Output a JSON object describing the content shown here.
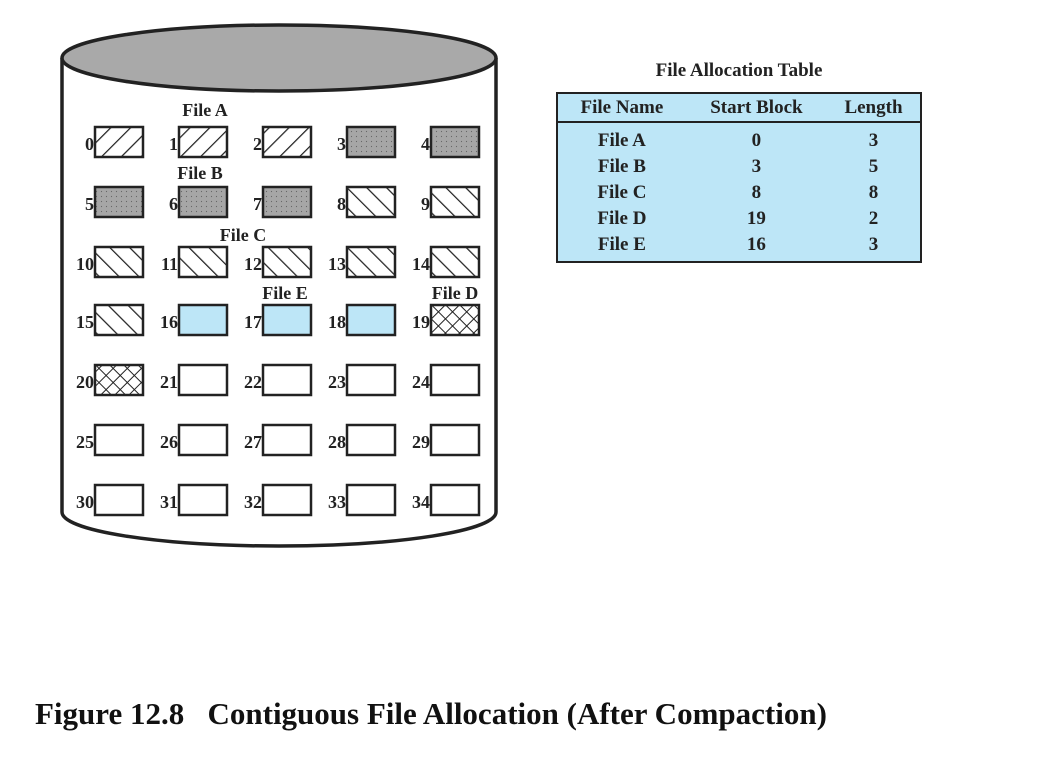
{
  "disk": {
    "block_count": 35,
    "files": [
      {
        "name": "File A",
        "pattern": "back-diagonal-hatch"
      },
      {
        "name": "File B",
        "pattern": "gray-dotted"
      },
      {
        "name": "File C",
        "pattern": "forward-diagonal-hatch"
      },
      {
        "name": "File D",
        "pattern": "cross-hatch"
      },
      {
        "name": "File E",
        "pattern": "light-blue"
      }
    ],
    "colors": {
      "cylinder_top": "#a9a9a9",
      "file_b": "#a6a6a6",
      "file_e": "#bde6f7",
      "outline": "#222222"
    }
  },
  "fat": {
    "title": "File Allocation Table",
    "columns": [
      "File Name",
      "Start Block",
      "Length"
    ],
    "rows": [
      [
        "File A",
        "0",
        "3"
      ],
      [
        "File B",
        "3",
        "5"
      ],
      [
        "File C",
        "8",
        "8"
      ],
      [
        "File D",
        "19",
        "2"
      ],
      [
        "File E",
        "16",
        "3"
      ]
    ],
    "background": "#bde6f7"
  },
  "caption": "Figure 12.8   Contiguous File Allocation (After Compaction)"
}
